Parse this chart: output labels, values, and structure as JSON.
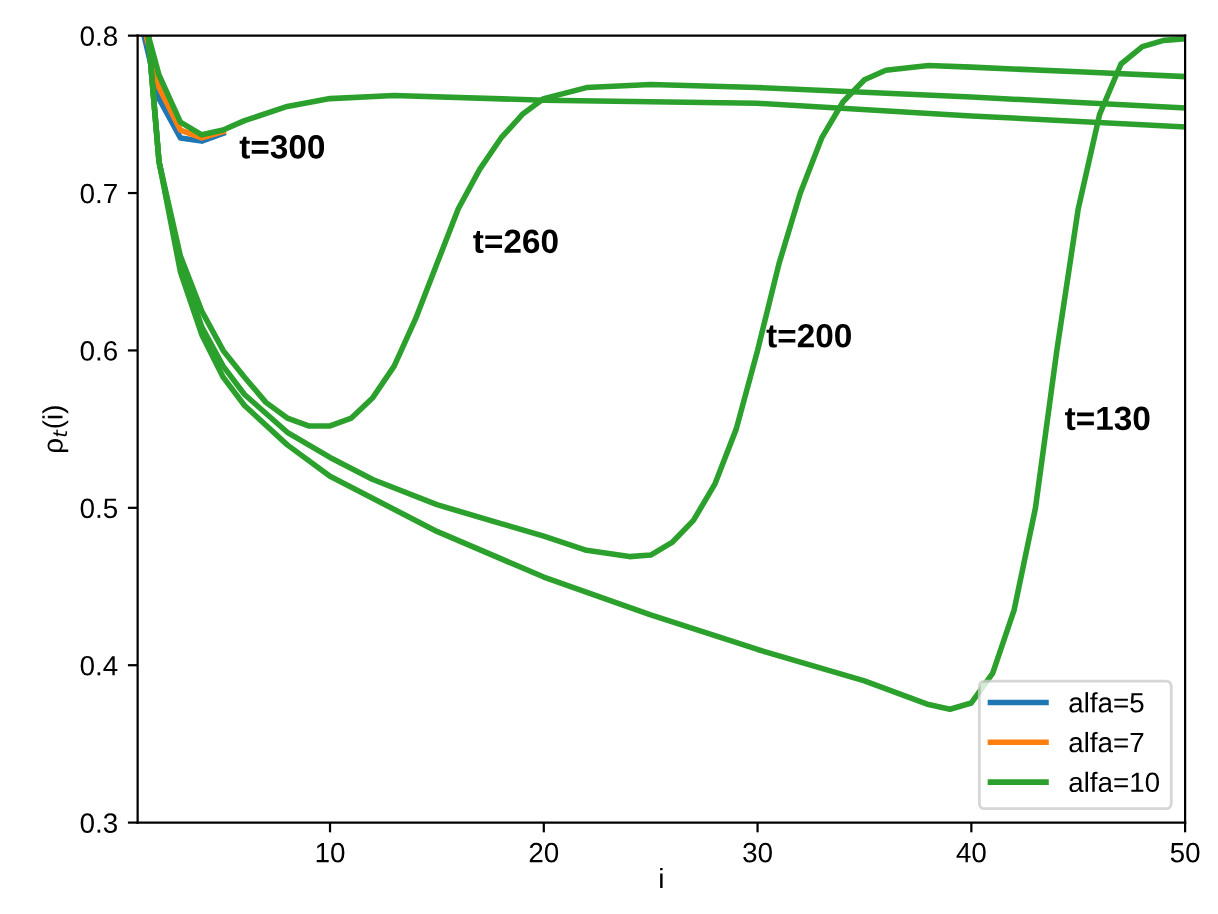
{
  "chart_data": {
    "type": "line",
    "xlabel": "i",
    "ylabel": "ρ$_{t}$(i)",
    "xlim": [
      1,
      50
    ],
    "ylim": [
      0.3,
      0.8
    ],
    "xticks": [
      10,
      20,
      30,
      40,
      50
    ],
    "yticks": [
      0.3,
      0.4,
      0.5,
      0.6,
      0.7,
      0.8
    ],
    "grid": false,
    "legend": "bottom right",
    "line_style": "solid",
    "marker": "none",
    "series": [
      {
        "name": "alfa=5",
        "color": "#1f77b4",
        "x": [
          1.3,
          2,
          3,
          4,
          5
        ],
        "values": [
          0.8,
          0.76,
          0.735,
          0.733,
          0.738
        ]
      },
      {
        "name": "alfa=7",
        "color": "#ff7f0e",
        "x": [
          1.4,
          2,
          3,
          4,
          5
        ],
        "values": [
          0.8,
          0.767,
          0.74,
          0.735,
          0.739
        ]
      },
      {
        "name": "alfa=10",
        "color": "#2ca02c",
        "x": [
          1.5,
          2,
          3,
          4,
          5,
          6,
          8,
          10,
          13,
          20,
          30,
          40,
          50
        ],
        "values": [
          0.8,
          0.775,
          0.745,
          0.737,
          0.74,
          0.746,
          0.755,
          0.76,
          0.762,
          0.759,
          0.757,
          0.749,
          0.742
        ]
      },
      {
        "color": "#2ca02c",
        "x": [
          1.5,
          2,
          3,
          4,
          5,
          6,
          7,
          8,
          9,
          10,
          11,
          12,
          13,
          14,
          15,
          16,
          17,
          18,
          19,
          20,
          22,
          25,
          30,
          40,
          50
        ],
        "values": [
          0.8,
          0.72,
          0.66,
          0.625,
          0.6,
          0.583,
          0.567,
          0.557,
          0.552,
          0.552,
          0.557,
          0.57,
          0.59,
          0.62,
          0.655,
          0.69,
          0.715,
          0.735,
          0.75,
          0.76,
          0.767,
          0.769,
          0.767,
          0.761,
          0.754
        ]
      },
      {
        "color": "#2ca02c",
        "x": [
          1.5,
          2,
          3,
          4,
          5,
          6,
          8,
          10,
          12,
          15,
          18,
          20,
          22,
          24,
          25,
          26,
          27,
          28,
          29,
          30,
          31,
          32,
          33,
          34,
          35,
          36,
          38,
          40,
          45,
          50
        ],
        "values": [
          0.8,
          0.72,
          0.655,
          0.615,
          0.59,
          0.572,
          0.548,
          0.532,
          0.518,
          0.502,
          0.49,
          0.482,
          0.473,
          0.469,
          0.47,
          0.478,
          0.492,
          0.515,
          0.55,
          0.6,
          0.655,
          0.7,
          0.735,
          0.758,
          0.772,
          0.778,
          0.781,
          0.78,
          0.777,
          0.774
        ]
      },
      {
        "color": "#2ca02c",
        "x": [
          1.5,
          2,
          3,
          4,
          5,
          6,
          8,
          10,
          15,
          20,
          25,
          30,
          35,
          38,
          39,
          40,
          41,
          42,
          43,
          44,
          45,
          46,
          47,
          48,
          49,
          50
        ],
        "values": [
          0.8,
          0.72,
          0.65,
          0.61,
          0.583,
          0.565,
          0.54,
          0.52,
          0.485,
          0.456,
          0.432,
          0.41,
          0.39,
          0.375,
          0.372,
          0.376,
          0.395,
          0.435,
          0.5,
          0.6,
          0.69,
          0.75,
          0.782,
          0.793,
          0.797,
          0.798
        ]
      }
    ],
    "annotations": [
      "t=300",
      "t=260",
      "t=200",
      "t=130"
    ]
  }
}
